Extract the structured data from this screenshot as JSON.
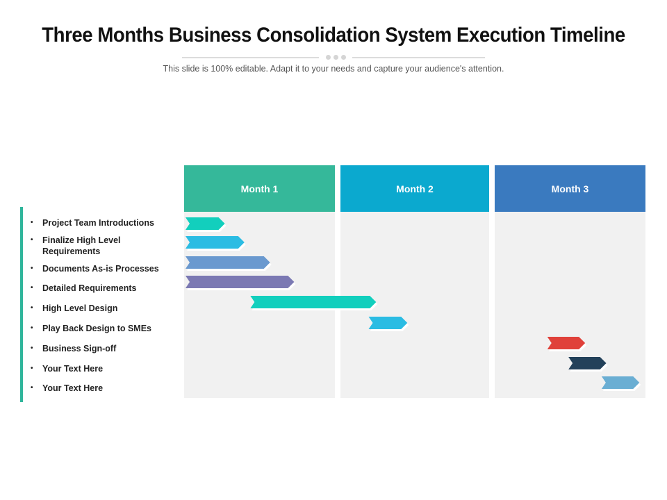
{
  "title": "Three Months Business Consolidation System Execution Timeline",
  "subtitle": "This slide is 100% editable. Adapt it to your needs and capture your audience's attention.",
  "months": [
    {
      "label": "Month 1",
      "color": "#35b89a"
    },
    {
      "label": "Month 2",
      "color": "#0ba9cf"
    },
    {
      "label": "Month 3",
      "color": "#3a7abf"
    }
  ],
  "tasks": [
    {
      "label": "Project Team Introductions",
      "start": 0.0,
      "end": 0.27,
      "color": "#12cfbd"
    },
    {
      "label": "Finalize High Level Requirements",
      "start": 0.0,
      "end": 0.4,
      "color": "#2bbce3"
    },
    {
      "label": "Documents As-is Processes",
      "start": 0.0,
      "end": 0.57,
      "color": "#6a99cf"
    },
    {
      "label": "Detailed Requirements",
      "start": 0.0,
      "end": 0.73,
      "color": "#7b79b3"
    },
    {
      "label": "High Level Design",
      "start": 0.43,
      "end": 1.24,
      "color": "#12cfbd"
    },
    {
      "label": "Play Back Design to SMEs",
      "start": 1.18,
      "end": 1.45,
      "color": "#2bbce3"
    },
    {
      "label": "Business Sign-off",
      "start": 2.34,
      "end": 2.6,
      "color": "#e0413a"
    },
    {
      "label": "Your Text Here",
      "start": 2.48,
      "end": 2.74,
      "color": "#23415a"
    },
    {
      "label": "Your Text Here",
      "start": 2.7,
      "end": 2.96,
      "color": "#6aaed3"
    }
  ],
  "bullet": "•"
}
